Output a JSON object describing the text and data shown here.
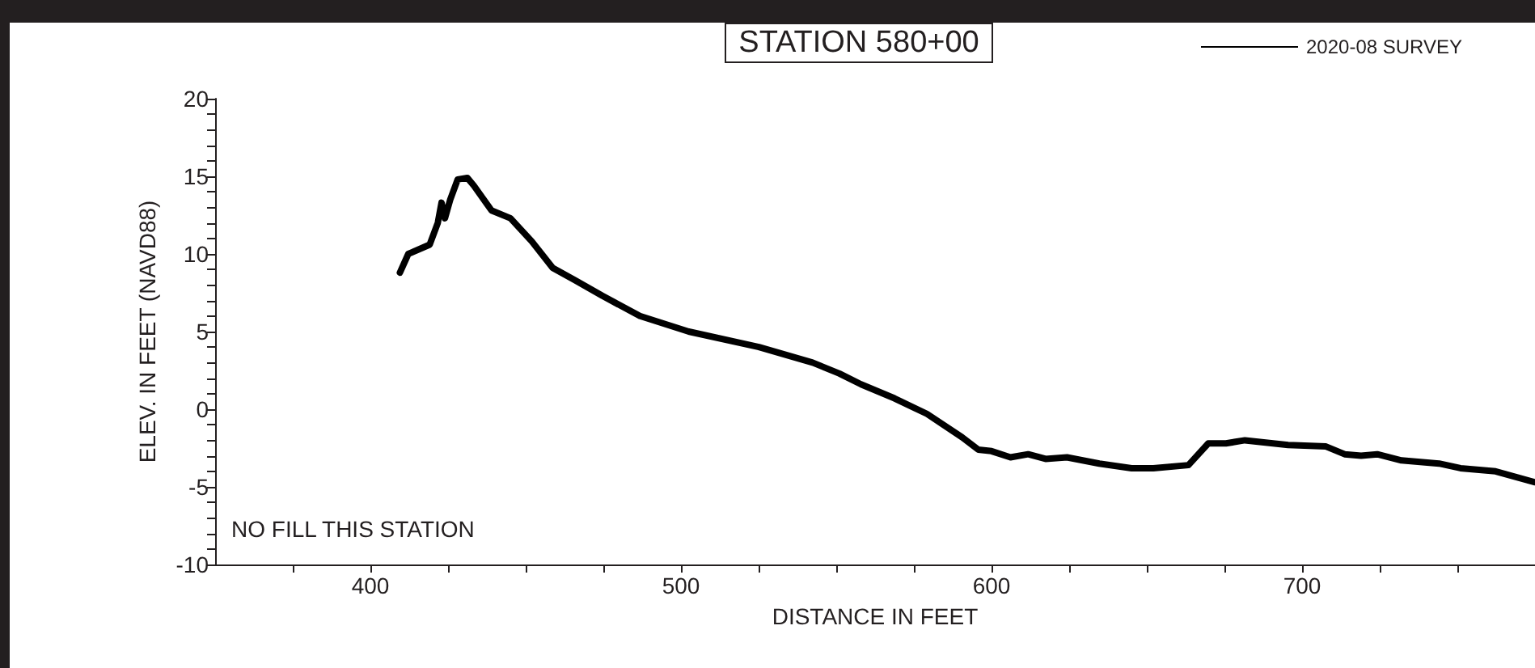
{
  "chart_data": {
    "type": "line",
    "title": "STATION 580+00",
    "xlabel": "DISTANCE IN FEET",
    "ylabel": "ELEV. IN FEET (NAVD88)",
    "annotations": [
      "NO FILL THIS STATION"
    ],
    "xlim": [
      350,
      775
    ],
    "xticks": [
      {
        "value": 375,
        "label": null
      },
      400,
      {
        "value": 425,
        "label": null
      },
      {
        "value": 450,
        "label": null
      },
      {
        "value": 475,
        "label": null
      },
      500,
      {
        "value": 525,
        "label": null
      },
      {
        "value": 550,
        "label": null
      },
      {
        "value": 575,
        "label": null
      },
      600,
      {
        "value": 625,
        "label": null
      },
      {
        "value": 650,
        "label": null
      },
      {
        "value": 675,
        "label": null
      },
      700,
      {
        "value": 725,
        "label": null
      },
      {
        "value": 750,
        "label": null
      }
    ],
    "ylim": [
      -10,
      20
    ],
    "yticks": [
      -10,
      {
        "value": -9,
        "label": null
      },
      {
        "value": -8,
        "label": null
      },
      {
        "value": -7,
        "label": null
      },
      {
        "value": -6,
        "label": null
      },
      -5,
      {
        "value": -4,
        "label": null
      },
      {
        "value": -3,
        "label": null
      },
      {
        "value": -2,
        "label": null
      },
      {
        "value": -1,
        "label": null
      },
      0,
      {
        "value": 1,
        "label": null
      },
      {
        "value": 2,
        "label": null
      },
      {
        "value": 3,
        "label": null
      },
      {
        "value": 4,
        "label": null
      },
      5,
      {
        "value": 6,
        "label": null
      },
      {
        "value": 7,
        "label": null
      },
      {
        "value": 8,
        "label": null
      },
      {
        "value": 9,
        "label": null
      },
      10,
      {
        "value": 11,
        "label": null
      },
      {
        "value": 12,
        "label": null
      },
      {
        "value": 13,
        "label": null
      },
      {
        "value": 14,
        "label": null
      },
      15,
      {
        "value": 16,
        "label": null
      },
      {
        "value": 17,
        "label": null
      },
      {
        "value": 18,
        "label": null
      },
      {
        "value": 19,
        "label": null
      },
      20
    ],
    "grid": false,
    "legend": "top right",
    "marker": "none",
    "line_style": "solid",
    "series": [
      {
        "name": "2020-08 SURVEY",
        "color": "#000000",
        "x": [
          409.5,
          412.2,
          419.1,
          421.7,
          422.9,
          424,
          425.7,
          428.1,
          431.2,
          433.3,
          439,
          445.1,
          452,
          458.7,
          466,
          474.7,
          486.8,
          502.5,
          525.1,
          542.4,
          551,
          558,
          568.75,
          579.2,
          590.5,
          595.7,
          600,
          606.1,
          611.8,
          617.4,
          624.3,
          634.7,
          645.1,
          652.1,
          663.4,
          669.8,
          675.5,
          681.6,
          695.5,
          707.7,
          713.7,
          719,
          724.2,
          732,
          744.1,
          751,
          762.3,
          774.8
        ],
        "values": [
          8.8,
          10.0,
          10.6,
          12.0,
          13.3,
          12.3,
          13.5,
          14.8,
          14.9,
          14.4,
          12.8,
          12.3,
          10.8,
          9.1,
          8.3,
          7.3,
          6.0,
          5.0,
          4.0,
          3.0,
          2.3,
          1.6,
          0.7,
          -0.3,
          -1.8,
          -2.6,
          -2.7,
          -3.1,
          -2.9,
          -3.2,
          -3.1,
          -3.5,
          -3.8,
          -3.8,
          -3.6,
          -2.2,
          -2.2,
          -2.0,
          -2.3,
          -2.4,
          -2.9,
          -3.0,
          -2.9,
          -3.3,
          -3.5,
          -3.8,
          -4.0,
          -4.7
        ]
      }
    ]
  }
}
